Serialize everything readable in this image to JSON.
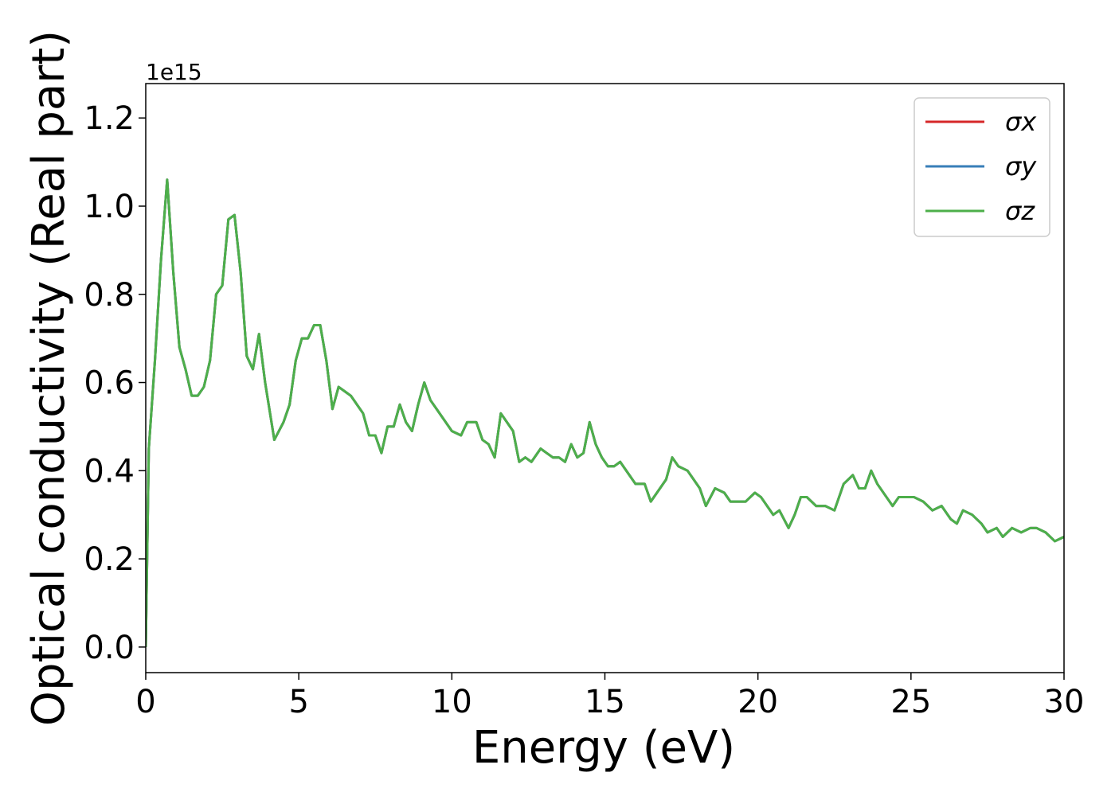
{
  "chart_data": {
    "type": "line",
    "xlabel": "Energy (eV)",
    "ylabel": "Optical conductivity (Real part)",
    "y_offset_label": "1e15",
    "legend": "upper right",
    "grid": false,
    "xlim": [
      0,
      30
    ],
    "xticks": [
      0,
      5,
      10,
      15,
      20,
      25,
      30
    ],
    "ylim": [
      -0.058,
      1.278
    ],
    "yticks": [
      {
        "value": 0,
        "label": "0.0"
      },
      {
        "value": 0.2,
        "label": "0.2"
      },
      {
        "value": 0.4,
        "label": "0.4"
      },
      {
        "value": 0.6,
        "label": "0.6"
      },
      {
        "value": 0.8,
        "label": "0.8"
      },
      {
        "value": 1.0,
        "label": "1.0"
      },
      {
        "value": 1.2,
        "label": "1.2"
      }
    ],
    "x": [
      0,
      0.1,
      0.3,
      0.5,
      0.7,
      0.9,
      1.1,
      1.3,
      1.5,
      1.7,
      1.9,
      2.1,
      2.3,
      2.5,
      2.7,
      2.9,
      3.1,
      3.3,
      3.5,
      3.7,
      3.9,
      4.2,
      4.5,
      4.7,
      4.9,
      5.1,
      5.3,
      5.5,
      5.7,
      5.9,
      6.1,
      6.3,
      6.5,
      6.7,
      6.9,
      7.1,
      7.3,
      7.5,
      7.7,
      7.9,
      8.1,
      8.3,
      8.5,
      8.7,
      8.9,
      9.1,
      9.3,
      9.5,
      9.8,
      10.0,
      10.3,
      10.5,
      10.8,
      11.0,
      11.2,
      11.4,
      11.6,
      11.8,
      12.0,
      12.2,
      12.4,
      12.6,
      12.9,
      13.1,
      13.3,
      13.5,
      13.7,
      13.9,
      14.1,
      14.3,
      14.5,
      14.7,
      14.9,
      15.1,
      15.3,
      15.5,
      15.8,
      16.0,
      16.3,
      16.5,
      16.8,
      17.0,
      17.2,
      17.4,
      17.7,
      17.9,
      18.1,
      18.3,
      18.6,
      18.9,
      19.1,
      19.3,
      19.6,
      19.9,
      20.1,
      20.3,
      20.5,
      20.7,
      21.0,
      21.2,
      21.4,
      21.6,
      21.9,
      22.2,
      22.5,
      22.8,
      23.1,
      23.3,
      23.5,
      23.7,
      23.9,
      24.2,
      24.4,
      24.6,
      24.9,
      25.1,
      25.4,
      25.7,
      26.0,
      26.3,
      26.5,
      26.7,
      27.0,
      27.3,
      27.5,
      27.8,
      28.0,
      28.3,
      28.6,
      28.9,
      29.1,
      29.4,
      29.7,
      30.0
    ],
    "series": [
      {
        "name": "σx",
        "color": "#d62728",
        "values": [
          0,
          0.45,
          0.65,
          0.88,
          1.06,
          0.85,
          0.68,
          0.63,
          0.57,
          0.57,
          0.59,
          0.65,
          0.8,
          0.82,
          0.97,
          0.98,
          0.85,
          0.66,
          0.63,
          0.71,
          0.6,
          0.47,
          0.51,
          0.55,
          0.65,
          0.7,
          0.7,
          0.73,
          0.73,
          0.65,
          0.54,
          0.59,
          0.58,
          0.57,
          0.55,
          0.53,
          0.48,
          0.48,
          0.44,
          0.5,
          0.5,
          0.55,
          0.51,
          0.49,
          0.55,
          0.6,
          0.56,
          0.54,
          0.51,
          0.49,
          0.48,
          0.51,
          0.51,
          0.47,
          0.46,
          0.43,
          0.53,
          0.51,
          0.49,
          0.42,
          0.43,
          0.42,
          0.45,
          0.44,
          0.43,
          0.43,
          0.42,
          0.46,
          0.43,
          0.44,
          0.51,
          0.46,
          0.43,
          0.41,
          0.41,
          0.42,
          0.39,
          0.37,
          0.37,
          0.33,
          0.36,
          0.38,
          0.43,
          0.41,
          0.4,
          0.38,
          0.36,
          0.32,
          0.36,
          0.35,
          0.33,
          0.33,
          0.33,
          0.35,
          0.34,
          0.32,
          0.3,
          0.31,
          0.27,
          0.3,
          0.34,
          0.34,
          0.32,
          0.32,
          0.31,
          0.37,
          0.39,
          0.36,
          0.36,
          0.4,
          0.37,
          0.34,
          0.32,
          0.34,
          0.34,
          0.34,
          0.33,
          0.31,
          0.32,
          0.29,
          0.28,
          0.31,
          0.3,
          0.28,
          0.26,
          0.27,
          0.25,
          0.27,
          0.26,
          0.27,
          0.27,
          0.26,
          0.24,
          0.25
        ]
      },
      {
        "name": "σy",
        "color": "#377eb8",
        "values": [
          0,
          0.45,
          0.65,
          0.88,
          1.06,
          0.85,
          0.68,
          0.63,
          0.57,
          0.57,
          0.59,
          0.65,
          0.8,
          0.82,
          0.97,
          0.98,
          0.85,
          0.66,
          0.63,
          0.71,
          0.6,
          0.47,
          0.51,
          0.55,
          0.65,
          0.7,
          0.7,
          0.73,
          0.73,
          0.65,
          0.54,
          0.59,
          0.58,
          0.57,
          0.55,
          0.53,
          0.48,
          0.48,
          0.44,
          0.5,
          0.5,
          0.55,
          0.51,
          0.49,
          0.55,
          0.6,
          0.56,
          0.54,
          0.51,
          0.49,
          0.48,
          0.51,
          0.51,
          0.47,
          0.46,
          0.43,
          0.53,
          0.51,
          0.49,
          0.42,
          0.43,
          0.42,
          0.45,
          0.44,
          0.43,
          0.43,
          0.42,
          0.46,
          0.43,
          0.44,
          0.51,
          0.46,
          0.43,
          0.41,
          0.41,
          0.42,
          0.39,
          0.37,
          0.37,
          0.33,
          0.36,
          0.38,
          0.43,
          0.41,
          0.4,
          0.38,
          0.36,
          0.32,
          0.36,
          0.35,
          0.33,
          0.33,
          0.33,
          0.35,
          0.34,
          0.32,
          0.3,
          0.31,
          0.27,
          0.3,
          0.34,
          0.34,
          0.32,
          0.32,
          0.31,
          0.37,
          0.39,
          0.36,
          0.36,
          0.4,
          0.37,
          0.34,
          0.32,
          0.34,
          0.34,
          0.34,
          0.33,
          0.31,
          0.32,
          0.29,
          0.28,
          0.31,
          0.3,
          0.28,
          0.26,
          0.27,
          0.25,
          0.27,
          0.26,
          0.27,
          0.27,
          0.26,
          0.24,
          0.25
        ]
      },
      {
        "name": "σz",
        "color": "#4daf4a",
        "values": [
          0,
          0.45,
          0.65,
          0.88,
          1.06,
          0.85,
          0.68,
          0.63,
          0.57,
          0.57,
          0.59,
          0.65,
          0.8,
          0.82,
          0.97,
          0.98,
          0.85,
          0.66,
          0.63,
          0.71,
          0.6,
          0.47,
          0.51,
          0.55,
          0.65,
          0.7,
          0.7,
          0.73,
          0.73,
          0.65,
          0.54,
          0.59,
          0.58,
          0.57,
          0.55,
          0.53,
          0.48,
          0.48,
          0.44,
          0.5,
          0.5,
          0.55,
          0.51,
          0.49,
          0.55,
          0.6,
          0.56,
          0.54,
          0.51,
          0.49,
          0.48,
          0.51,
          0.51,
          0.47,
          0.46,
          0.43,
          0.53,
          0.51,
          0.49,
          0.42,
          0.43,
          0.42,
          0.45,
          0.44,
          0.43,
          0.43,
          0.42,
          0.46,
          0.43,
          0.44,
          0.51,
          0.46,
          0.43,
          0.41,
          0.41,
          0.42,
          0.39,
          0.37,
          0.37,
          0.33,
          0.36,
          0.38,
          0.43,
          0.41,
          0.4,
          0.38,
          0.36,
          0.32,
          0.36,
          0.35,
          0.33,
          0.33,
          0.33,
          0.35,
          0.34,
          0.32,
          0.3,
          0.31,
          0.27,
          0.3,
          0.34,
          0.34,
          0.32,
          0.32,
          0.31,
          0.37,
          0.39,
          0.36,
          0.36,
          0.4,
          0.37,
          0.34,
          0.32,
          0.34,
          0.34,
          0.34,
          0.33,
          0.31,
          0.32,
          0.29,
          0.28,
          0.31,
          0.3,
          0.28,
          0.26,
          0.27,
          0.25,
          0.27,
          0.26,
          0.27,
          0.27,
          0.26,
          0.24,
          0.25
        ]
      }
    ]
  }
}
